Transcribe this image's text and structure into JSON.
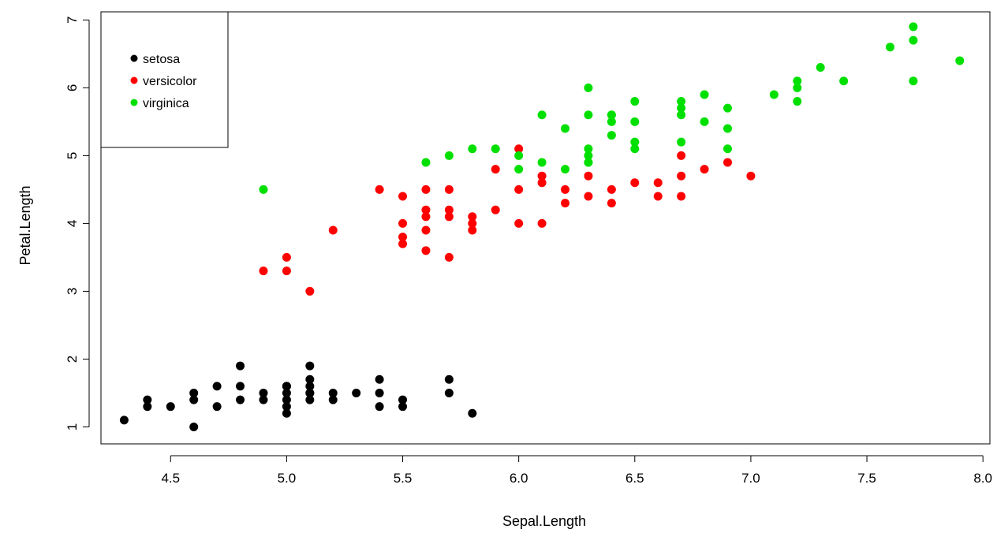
{
  "chart_data": {
    "type": "scatter",
    "title": "",
    "xlabel": "Sepal.Length",
    "ylabel": "Petal.Length",
    "xlim": [
      4.2,
      8.03
    ],
    "ylim": [
      0.75,
      7.12
    ],
    "xticks": [
      4.5,
      5.0,
      5.5,
      6.0,
      6.5,
      7.0,
      7.5,
      8.0
    ],
    "xtick_labels": [
      "4.5",
      "5.0",
      "5.5",
      "6.0",
      "6.5",
      "7.0",
      "7.5",
      "8.0"
    ],
    "yticks": [
      1,
      2,
      3,
      4,
      5,
      6,
      7
    ],
    "ytick_labels": [
      "1",
      "2",
      "3",
      "4",
      "5",
      "6",
      "7"
    ],
    "grid": false,
    "legend_position": "top-left",
    "series": [
      {
        "name": "setosa",
        "color": "#000000",
        "x": [
          4.3,
          4.4,
          4.4,
          4.5,
          4.6,
          4.6,
          4.6,
          4.7,
          4.7,
          4.8,
          4.8,
          4.8,
          4.9,
          4.9,
          5.0,
          5.0,
          5.0,
          5.0,
          5.0,
          5.0,
          5.1,
          5.1,
          5.1,
          5.1,
          5.1,
          5.1,
          5.2,
          5.2,
          5.3,
          5.4,
          5.4,
          5.4,
          5.5,
          5.5,
          5.7,
          5.7,
          5.8
        ],
        "y": [
          1.1,
          1.3,
          1.4,
          1.3,
          1.0,
          1.4,
          1.5,
          1.3,
          1.6,
          1.4,
          1.6,
          1.9,
          1.4,
          1.5,
          1.2,
          1.3,
          1.4,
          1.5,
          1.6,
          1.6,
          1.4,
          1.5,
          1.6,
          1.7,
          1.9,
          1.5,
          1.4,
          1.5,
          1.5,
          1.3,
          1.5,
          1.7,
          1.3,
          1.4,
          1.5,
          1.7,
          1.2
        ]
      },
      {
        "name": "versicolor",
        "color": "#ff0000",
        "x": [
          4.9,
          5.0,
          5.0,
          5.1,
          5.2,
          5.4,
          5.5,
          5.5,
          5.5,
          5.5,
          5.6,
          5.6,
          5.6,
          5.6,
          5.6,
          5.7,
          5.7,
          5.7,
          5.7,
          5.8,
          5.8,
          5.8,
          5.9,
          5.9,
          6.0,
          6.0,
          6.0,
          6.1,
          6.1,
          6.1,
          6.2,
          6.2,
          6.3,
          6.3,
          6.4,
          6.4,
          6.5,
          6.6,
          6.6,
          6.7,
          6.7,
          6.7,
          6.8,
          6.9,
          7.0
        ],
        "y": [
          3.3,
          3.3,
          3.5,
          3.0,
          3.9,
          4.5,
          3.7,
          3.8,
          4.0,
          4.4,
          3.6,
          3.9,
          4.1,
          4.2,
          4.5,
          3.5,
          4.1,
          4.2,
          4.5,
          3.9,
          4.0,
          4.1,
          4.2,
          4.8,
          4.0,
          4.5,
          5.1,
          4.0,
          4.6,
          4.7,
          4.3,
          4.5,
          4.4,
          4.7,
          4.3,
          4.5,
          4.6,
          4.4,
          4.6,
          4.4,
          4.7,
          5.0,
          4.8,
          4.9,
          4.7
        ]
      },
      {
        "name": "virginica",
        "color": "#00e000",
        "x": [
          4.9,
          5.6,
          5.7,
          5.8,
          5.9,
          6.0,
          6.0,
          6.1,
          6.1,
          6.2,
          6.2,
          6.3,
          6.3,
          6.3,
          6.3,
          6.3,
          6.3,
          6.4,
          6.4,
          6.4,
          6.4,
          6.5,
          6.5,
          6.5,
          6.5,
          6.7,
          6.7,
          6.7,
          6.7,
          6.8,
          6.8,
          6.9,
          6.9,
          6.9,
          7.1,
          7.2,
          7.2,
          7.2,
          7.3,
          7.4,
          7.6,
          7.7,
          7.7,
          7.7,
          7.9
        ],
        "y": [
          4.5,
          4.9,
          5.0,
          5.1,
          5.1,
          4.8,
          5.0,
          4.9,
          5.6,
          4.8,
          5.4,
          4.9,
          5.0,
          5.1,
          5.6,
          6.0,
          4.9,
          5.3,
          5.5,
          5.6,
          5.6,
          5.1,
          5.2,
          5.5,
          5.8,
          5.2,
          5.6,
          5.7,
          5.8,
          5.5,
          5.9,
          5.1,
          5.4,
          5.7,
          5.9,
          5.8,
          6.0,
          6.1,
          6.3,
          6.1,
          6.6,
          6.1,
          6.7,
          6.9,
          6.4
        ]
      }
    ]
  }
}
